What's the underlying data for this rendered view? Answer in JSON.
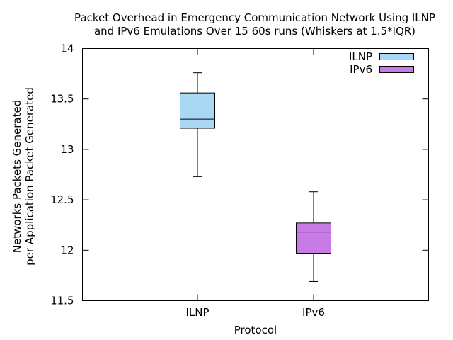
{
  "chart_data": {
    "type": "box",
    "title_lines": [
      "Packet Overhead in Emergency Communication Network Using ILNP",
      "and IPv6 Emulations Over 15 60s runs (Whiskers at 1.5*IQR)"
    ],
    "xlabel": "Protocol",
    "ylabel_lines": [
      "Networks Packets Generated",
      "per Application Packet Generated"
    ],
    "ylim": [
      11.5,
      14
    ],
    "yticks": [
      "11.5",
      "12",
      "12.5",
      "13",
      "13.5",
      "14"
    ],
    "ytick_values": [
      11.5,
      12,
      12.5,
      13,
      13.5,
      14
    ],
    "categories": [
      "ILNP",
      "IPv6"
    ],
    "legend_position": "top-right",
    "series": [
      {
        "name": "ILNP",
        "color": "#a8d8f4",
        "min": 12.73,
        "q1": 13.21,
        "median": 13.3,
        "q3": 13.56,
        "max": 13.76
      },
      {
        "name": "IPv6",
        "color": "#c87be6",
        "min": 11.69,
        "q1": 11.97,
        "median": 12.18,
        "q3": 12.27,
        "max": 12.58
      }
    ],
    "grid": false
  }
}
